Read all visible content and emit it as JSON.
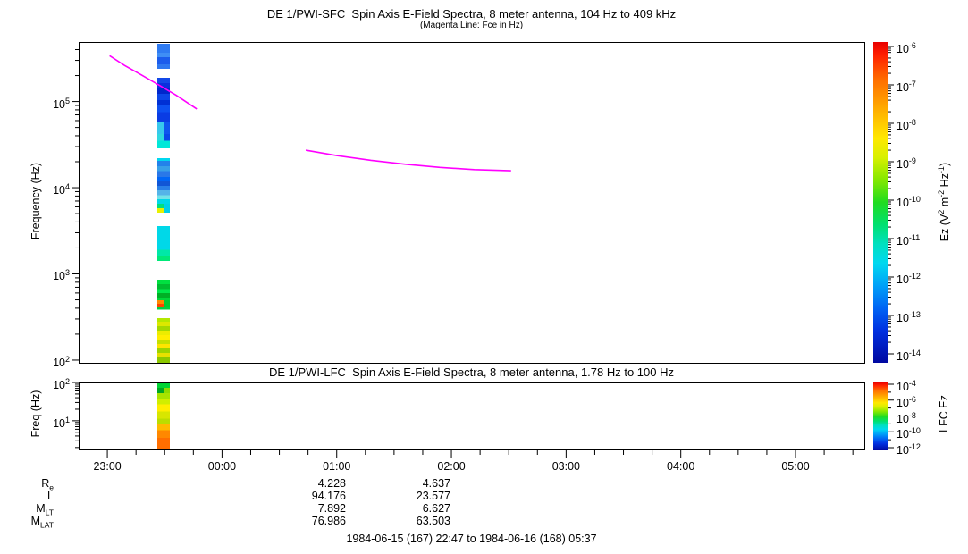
{
  "titles": {
    "sfc_title": "DE 1/PWI-SFC  Spin Axis E-Field Spectra, 8 meter antenna, 104 Hz to 409 kHz",
    "sfc_subtitle": "(Magenta Line: Fce in Hz)",
    "lfc_title": "DE 1/PWI-LFC  Spin Axis E-Field Spectra, 8 meter antenna, 1.78 Hz to 100 Hz",
    "footer": "1984-06-15 (167) 22:47 to 1984-06-16 (168) 05:37"
  },
  "axes": {
    "sfc_ylabel": "Frequency (Hz)",
    "lfc_ylabel": "Freq (Hz)"
  },
  "orbit": {
    "rows": [
      {
        "label": "R",
        "sub": "e",
        "col1": "4.228",
        "col2": "4.637"
      },
      {
        "label": "L",
        "sub": "",
        "col1": "94.176",
        "col2": "23.577"
      },
      {
        "label": "M",
        "sub": "LT",
        "col1": "7.892",
        "col2": "6.627"
      },
      {
        "label": "M",
        "sub": "LAT",
        "col1": "76.986",
        "col2": "63.503"
      }
    ]
  },
  "chart_data": [
    {
      "type": "heatmap",
      "title": "DE 1/PWI-SFC  Spin Axis E-Field Spectra, 8 meter antenna, 104 Hz to 409 kHz",
      "subtitle": "(Magenta Line: Fce in Hz)",
      "ylabel": "Frequency (Hz)",
      "yscale": "log",
      "ylim": [
        93,
        490000
      ],
      "y_tick_exponents": [
        2,
        3,
        4,
        5
      ],
      "x_tick_labels": [
        "23:00",
        "00:00",
        "01:00",
        "02:00",
        "03:00",
        "04:00",
        "05:00"
      ],
      "x_range_hours_from_2300": [
        -0.25,
        6.6
      ],
      "colorbar": {
        "label_tokens": [
          {
            "t": "Ez (V"
          },
          {
            "s": "2"
          },
          {
            "t": " m"
          },
          {
            "s": "-2"
          },
          {
            "t": " Hz"
          },
          {
            "s": "-1"
          },
          {
            "t": ")"
          }
        ],
        "tick_exponents": [
          -6,
          -7,
          -8,
          -9,
          -10,
          -11,
          -12,
          -13,
          -14
        ],
        "colormap": [
          [
            0,
            "#e80000"
          ],
          [
            0.04,
            "#ff2000"
          ],
          [
            0.12,
            "#ff7000"
          ],
          [
            0.22,
            "#ffb400"
          ],
          [
            0.3,
            "#ffe800"
          ],
          [
            0.36,
            "#d8f000"
          ],
          [
            0.43,
            "#84e800"
          ],
          [
            0.5,
            "#20dc20"
          ],
          [
            0.57,
            "#00e070"
          ],
          [
            0.63,
            "#00e0c0"
          ],
          [
            0.69,
            "#00d8f0"
          ],
          [
            0.76,
            "#00a0f8"
          ],
          [
            0.83,
            "#0064f4"
          ],
          [
            0.9,
            "#0030e0"
          ],
          [
            1,
            "#0008a0"
          ]
        ]
      },
      "fce_line": {
        "color": "#ff00ff",
        "segments": [
          [
            [
              0.02,
              340000
            ],
            [
              0.15,
              262000
            ],
            [
              0.3,
              202000
            ],
            [
              0.45,
              155000
            ],
            [
              0.6,
              118000
            ],
            [
              0.78,
              82000
            ]
          ],
          [
            [
              1.73,
              27200
            ],
            [
              2.0,
              23600
            ],
            [
              2.3,
              20800
            ],
            [
              2.6,
              18700
            ],
            [
              2.9,
              17200
            ],
            [
              3.2,
              16200
            ],
            [
              3.52,
              15700
            ]
          ]
        ]
      },
      "spectrogram_column": {
        "t0": 0.436,
        "t1": 0.546,
        "segments": [
          {
            "f_hi": 466000,
            "f_lo": 367000,
            "color": "#2f7bf2",
            "side": "full"
          },
          {
            "f_hi": 367000,
            "f_lo": 326000,
            "color": "#3f8ef5",
            "side": "full"
          },
          {
            "f_hi": 326000,
            "f_lo": 269000,
            "color": "#1b5cec",
            "side": "full"
          },
          {
            "f_hi": 269000,
            "f_lo": 239000,
            "color": "#2e78f0",
            "side": "full"
          },
          {
            "f_hi": 188000,
            "f_lo": 163000,
            "color": "#1348e8",
            "side": "full"
          },
          {
            "f_hi": 163000,
            "f_lo": 142000,
            "color": "#0a30dd",
            "side": "full"
          },
          {
            "f_hi": 142000,
            "f_lo": 123000,
            "color": "#0026cc",
            "side": "full"
          },
          {
            "f_hi": 123000,
            "f_lo": 104000,
            "color": "#0c46e8",
            "side": "full"
          },
          {
            "f_hi": 104000,
            "f_lo": 90000,
            "color": "#0030d4",
            "side": "full"
          },
          {
            "f_hi": 90000,
            "f_lo": 75000,
            "color": "#0d50f0",
            "side": "full"
          },
          {
            "f_hi": 75000,
            "f_lo": 58000,
            "color": "#0a3ce4",
            "side": "full"
          },
          {
            "f_hi": 58000,
            "f_lo": 42000,
            "color": "#38c8ec",
            "side": "left"
          },
          {
            "f_hi": 58000,
            "f_lo": 42000,
            "color": "#0f55ee",
            "side": "right"
          },
          {
            "f_hi": 42000,
            "f_lo": 35000,
            "color": "#30d8e0",
            "side": "left"
          },
          {
            "f_hi": 42000,
            "f_lo": 35000,
            "color": "#0848e8",
            "side": "right"
          },
          {
            "f_hi": 35000,
            "f_lo": 28700,
            "color": "#00e8d8",
            "side": "full"
          },
          {
            "f_hi": 22000,
            "f_lo": 20500,
            "color": "#00d8f0",
            "side": "full"
          },
          {
            "f_hi": 20500,
            "f_lo": 17800,
            "color": "#2382ea",
            "side": "full"
          },
          {
            "f_hi": 17800,
            "f_lo": 15500,
            "color": "#38a0e8",
            "side": "full"
          },
          {
            "f_hi": 15500,
            "f_lo": 13300,
            "color": "#2a78e8",
            "side": "full"
          },
          {
            "f_hi": 13300,
            "f_lo": 11900,
            "color": "#0066f6",
            "side": "full"
          },
          {
            "f_hi": 11900,
            "f_lo": 10500,
            "color": "#1156d6",
            "side": "full"
          },
          {
            "f_hi": 10500,
            "f_lo": 9300,
            "color": "#2a80e8",
            "side": "full"
          },
          {
            "f_hi": 9300,
            "f_lo": 8200,
            "color": "#55b4e8",
            "side": "full"
          },
          {
            "f_hi": 8200,
            "f_lo": 7300,
            "color": "#74e2e8",
            "side": "full"
          },
          {
            "f_hi": 7300,
            "f_lo": 6500,
            "color": "#00d8e8",
            "side": "full"
          },
          {
            "f_hi": 6500,
            "f_lo": 5750,
            "color": "#00e080",
            "side": "left"
          },
          {
            "f_hi": 6500,
            "f_lo": 5750,
            "color": "#00d0e8",
            "side": "right"
          },
          {
            "f_hi": 5750,
            "f_lo": 5100,
            "color": "#e8f000",
            "side": "left"
          },
          {
            "f_hi": 5750,
            "f_lo": 5100,
            "color": "#00d0e8",
            "side": "right"
          },
          {
            "f_hi": 3600,
            "f_lo": 1900,
            "color": "#00d8e8",
            "side": "full"
          },
          {
            "f_hi": 1900,
            "f_lo": 1620,
            "color": "#00e8a8",
            "side": "full"
          },
          {
            "f_hi": 1620,
            "f_lo": 1410,
            "color": "#00e878",
            "side": "full"
          },
          {
            "f_hi": 860,
            "f_lo": 760,
            "color": "#00e040",
            "side": "full"
          },
          {
            "f_hi": 760,
            "f_lo": 670,
            "color": "#00bb30",
            "side": "full"
          },
          {
            "f_hi": 670,
            "f_lo": 595,
            "color": "#00e84a",
            "side": "full"
          },
          {
            "f_hi": 595,
            "f_lo": 530,
            "color": "#00b026",
            "side": "full"
          },
          {
            "f_hi": 530,
            "f_lo": 495,
            "color": "#00d838",
            "side": "full"
          },
          {
            "f_hi": 495,
            "f_lo": 450,
            "color": "#ff8800",
            "side": "left"
          },
          {
            "f_hi": 495,
            "f_lo": 450,
            "color": "#00cc33",
            "side": "right"
          },
          {
            "f_hi": 450,
            "f_lo": 410,
            "color": "#ff4400",
            "side": "left"
          },
          {
            "f_hi": 450,
            "f_lo": 410,
            "color": "#00cc33",
            "side": "right"
          },
          {
            "f_hi": 410,
            "f_lo": 385,
            "color": "#00d040",
            "side": "full"
          },
          {
            "f_hi": 307,
            "f_lo": 279,
            "color": "#b4e800",
            "side": "full"
          },
          {
            "f_hi": 279,
            "f_lo": 247,
            "color": "#dce800",
            "side": "full"
          },
          {
            "f_hi": 247,
            "f_lo": 220,
            "color": "#a4d800",
            "side": "full"
          },
          {
            "f_hi": 220,
            "f_lo": 195,
            "color": "#ecec00",
            "side": "full"
          },
          {
            "f_hi": 195,
            "f_lo": 173,
            "color": "#ffee00",
            "side": "full"
          },
          {
            "f_hi": 173,
            "f_lo": 154,
            "color": "#c4e000",
            "side": "full"
          },
          {
            "f_hi": 154,
            "f_lo": 137,
            "color": "#ffe400",
            "side": "full"
          },
          {
            "f_hi": 137,
            "f_lo": 121,
            "color": "#9cd400",
            "side": "full"
          },
          {
            "f_hi": 121,
            "f_lo": 108,
            "color": "#e8e000",
            "side": "full"
          },
          {
            "f_hi": 108,
            "f_lo": 93,
            "color": "#8cc800",
            "side": "full"
          }
        ]
      }
    },
    {
      "type": "heatmap",
      "title": "DE 1/PWI-LFC  Spin Axis E-Field Spectra, 8 meter antenna, 1.78 Hz to 100 Hz",
      "ylabel": "Freq (Hz)",
      "yscale": "log",
      "ylim": [
        1.78,
        100
      ],
      "y_tick_exponents": [
        1,
        2
      ],
      "x_tick_labels": [
        "23:00",
        "00:00",
        "01:00",
        "02:00",
        "03:00",
        "04:00",
        "05:00"
      ],
      "x_range_hours_from_2300": [
        -0.25,
        6.6
      ],
      "colorbar": {
        "label_tokens": [
          {
            "t": "LFC Ez"
          }
        ],
        "tick_exponents": [
          -4,
          -6,
          -8,
          -10,
          -12
        ],
        "colormap": [
          [
            0,
            "#e80000"
          ],
          [
            0.04,
            "#ff2000"
          ],
          [
            0.12,
            "#ff7000"
          ],
          [
            0.22,
            "#ffb400"
          ],
          [
            0.3,
            "#ffe800"
          ],
          [
            0.36,
            "#d8f000"
          ],
          [
            0.43,
            "#84e800"
          ],
          [
            0.5,
            "#20dc20"
          ],
          [
            0.57,
            "#00e070"
          ],
          [
            0.63,
            "#00e0c0"
          ],
          [
            0.69,
            "#00d8f0"
          ],
          [
            0.76,
            "#00a0f8"
          ],
          [
            0.83,
            "#0064f4"
          ],
          [
            0.9,
            "#0030e0"
          ],
          [
            1,
            "#0008a0"
          ]
        ]
      },
      "spectrogram_column": {
        "t0": 0.436,
        "t1": 0.546,
        "segments": [
          {
            "f_hi": 100,
            "f_lo": 72,
            "color": "#00d435",
            "side": "full"
          },
          {
            "f_hi": 72,
            "f_lo": 52,
            "color": "#00a822",
            "side": "left"
          },
          {
            "f_hi": 72,
            "f_lo": 52,
            "color": "#8cdc00",
            "side": "right"
          },
          {
            "f_hi": 52,
            "f_lo": 38,
            "color": "#a8e400",
            "side": "full"
          },
          {
            "f_hi": 38,
            "f_lo": 27,
            "color": "#d0ee00",
            "side": "full"
          },
          {
            "f_hi": 27,
            "f_lo": 17.5,
            "color": "#ffee00",
            "side": "full"
          },
          {
            "f_hi": 17.5,
            "f_lo": 11.5,
            "color": "#d8e600",
            "side": "full"
          },
          {
            "f_hi": 11.5,
            "f_lo": 8.4,
            "color": "#bbdd00",
            "side": "full"
          },
          {
            "f_hi": 8.4,
            "f_lo": 5.6,
            "color": "#ffbb00",
            "side": "full"
          },
          {
            "f_hi": 5.6,
            "f_lo": 3.6,
            "color": "#ff8800",
            "side": "full"
          },
          {
            "f_hi": 3.6,
            "f_lo": 1.78,
            "color": "#ff6e00",
            "side": "full"
          }
        ]
      }
    }
  ]
}
